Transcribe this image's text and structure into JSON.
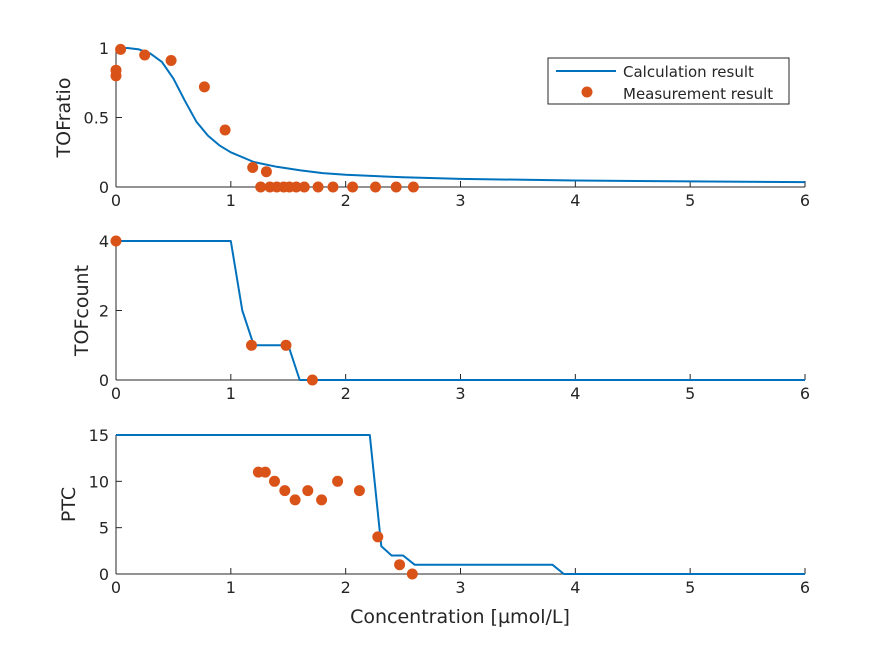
{
  "colors": {
    "line": "#0072BD",
    "marker": "#D95319",
    "axis": "#262626",
    "background": "#ffffff"
  },
  "xlabel": "Concentration [µmol/L]",
  "legend": {
    "line_label": "Calculation result",
    "marker_label": "Measurement result",
    "placement": "top-right (upper panel)"
  },
  "chart_data": [
    {
      "type": "line+scatter",
      "ylabel": "TOFratio",
      "xlim": [
        0,
        6
      ],
      "ylim": [
        0,
        1
      ],
      "x_ticks": [
        "0",
        "1",
        "2",
        "3",
        "4",
        "5",
        "6"
      ],
      "y_ticks": [
        "0",
        "0.5",
        "1"
      ],
      "y_tick_values": [
        0,
        0.5,
        1
      ],
      "series": [
        {
          "name": "Calculation result",
          "type": "line",
          "x": [
            0,
            0.1,
            0.2,
            0.3,
            0.4,
            0.5,
            0.6,
            0.7,
            0.8,
            0.9,
            1.0,
            1.2,
            1.4,
            1.6,
            1.8,
            2.0,
            2.5,
            3.0,
            4.0,
            5.0,
            6.0
          ],
          "y": [
            1.0,
            1.0,
            0.99,
            0.96,
            0.9,
            0.78,
            0.62,
            0.47,
            0.37,
            0.3,
            0.25,
            0.18,
            0.145,
            0.12,
            0.1,
            0.088,
            0.07,
            0.058,
            0.047,
            0.04,
            0.035
          ]
        },
        {
          "name": "Measurement result",
          "type": "scatter",
          "x": [
            0.0,
            0.0,
            0.04,
            0.25,
            0.48,
            0.77,
            0.95,
            1.19,
            1.26,
            1.31,
            1.34,
            1.4,
            1.46,
            1.51,
            1.57,
            1.64,
            1.76,
            1.89,
            2.06,
            2.26,
            2.44,
            2.59
          ],
          "y": [
            0.8,
            0.84,
            0.99,
            0.95,
            0.91,
            0.72,
            0.41,
            0.14,
            0.0,
            0.11,
            0.0,
            0.0,
            0.0,
            0.0,
            0.0,
            0.0,
            0.0,
            0.0,
            0.0,
            0.0,
            0.0,
            0.0
          ]
        }
      ]
    },
    {
      "type": "line+scatter",
      "ylabel": "TOFcount",
      "xlim": [
        0,
        6
      ],
      "ylim": [
        0,
        4
      ],
      "x_ticks": [
        "0",
        "1",
        "2",
        "3",
        "4",
        "5",
        "6"
      ],
      "y_ticks": [
        "0",
        "2",
        "4"
      ],
      "y_tick_values": [
        0,
        2,
        4
      ],
      "series": [
        {
          "name": "Calculation result",
          "type": "line",
          "x": [
            0,
            1.0,
            1.1,
            1.2,
            1.5,
            1.6,
            6.0
          ],
          "y": [
            4,
            4,
            2,
            1,
            1,
            0,
            0
          ]
        },
        {
          "name": "Measurement result",
          "type": "scatter",
          "x": [
            0.0,
            1.18,
            1.48,
            1.71
          ],
          "y": [
            4,
            1,
            1,
            0
          ]
        }
      ]
    },
    {
      "type": "line+scatter",
      "ylabel": "PTC",
      "xlim": [
        0,
        6
      ],
      "ylim": [
        0,
        15
      ],
      "x_ticks": [
        "0",
        "1",
        "2",
        "3",
        "4",
        "5",
        "6"
      ],
      "y_ticks": [
        "0",
        "5",
        "10",
        "15"
      ],
      "y_tick_values": [
        0,
        5,
        10,
        15
      ],
      "series": [
        {
          "name": "Calculation result",
          "type": "line",
          "x": [
            0,
            2.21,
            2.31,
            2.4,
            2.5,
            2.6,
            3.8,
            3.9,
            6.0
          ],
          "y": [
            15,
            15,
            3,
            2,
            2,
            1,
            1,
            0,
            0
          ]
        },
        {
          "name": "Measurement result",
          "type": "scatter",
          "x": [
            1.24,
            1.3,
            1.38,
            1.47,
            1.56,
            1.67,
            1.79,
            1.93,
            2.12,
            2.28,
            2.47,
            2.58
          ],
          "y": [
            11,
            11,
            10,
            9,
            8,
            9,
            8,
            10,
            9,
            4,
            1,
            0
          ]
        }
      ]
    }
  ]
}
